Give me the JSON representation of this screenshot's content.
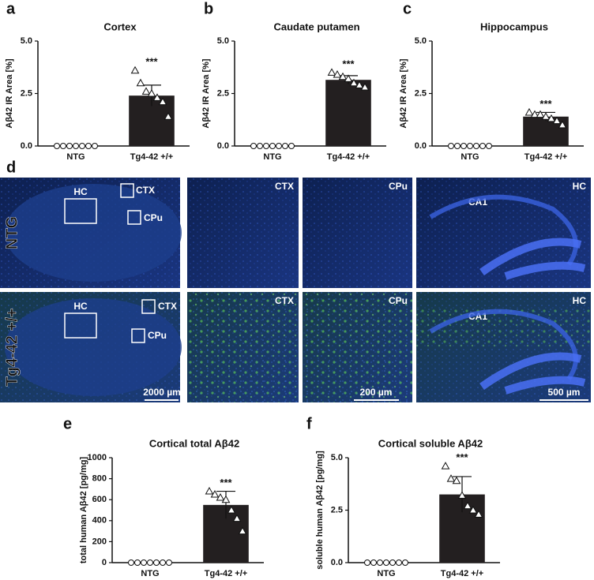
{
  "chart_data": [
    {
      "type": "bar",
      "panel": "a",
      "title": "Cortex",
      "ylabel": "Aβ42 IR Area [%]",
      "categories": [
        "NTG",
        "Tg4-42 +/+"
      ],
      "values": [
        0,
        2.4
      ],
      "errors": [
        0,
        0.5
      ],
      "points": [
        [
          0,
          0,
          0,
          0,
          0,
          0,
          0
        ],
        [
          3.6,
          3.0,
          2.6,
          2.5,
          2.3,
          2.1,
          1.4
        ]
      ],
      "annotation": "***",
      "color": "#231f20",
      "ylim": [
        0,
        5
      ],
      "yticks": [
        {
          "value": 0,
          "label": "0.0"
        },
        2.5,
        {
          "value": 5,
          "label": "5.0"
        }
      ]
    },
    {
      "type": "bar",
      "panel": "b",
      "title": "Caudate putamen",
      "ylabel": "Aβ42 IR Area [%]",
      "categories": [
        "NTG",
        "Tg4-42 +/+"
      ],
      "values": [
        0,
        3.15
      ],
      "errors": [
        0,
        0.2
      ],
      "points": [
        [
          0,
          0,
          0,
          0,
          0,
          0,
          0
        ],
        [
          3.5,
          3.4,
          3.3,
          3.2,
          3.0,
          2.9,
          2.8
        ]
      ],
      "annotation": "***",
      "color": "#231f20",
      "ylim": [
        0,
        5
      ],
      "yticks": [
        {
          "value": 0,
          "label": "0.0"
        },
        2.5,
        {
          "value": 5,
          "label": "5.0"
        }
      ]
    },
    {
      "type": "bar",
      "panel": "c",
      "title": "Hippocampus",
      "ylabel": "Aβ42 IR Area [%]",
      "categories": [
        "NTG",
        "Tg4-42 +/+"
      ],
      "values": [
        0,
        1.4
      ],
      "errors": [
        0,
        0.2
      ],
      "points": [
        [
          0,
          0,
          0,
          0,
          0,
          0,
          0
        ],
        [
          1.6,
          1.5,
          1.5,
          1.4,
          1.3,
          1.2,
          1.0
        ]
      ],
      "annotation": "***",
      "color": "#231f20",
      "ylim": [
        0,
        5
      ],
      "yticks": [
        {
          "value": 0,
          "label": "0.0"
        },
        2.5,
        {
          "value": 5,
          "label": "5.0"
        }
      ]
    },
    {
      "type": "bar",
      "panel": "e",
      "title": "Cortical total Aβ42",
      "ylabel": "total human Aβ42 [pg/mg]",
      "categories": [
        "NTG",
        "Tg4-42 +/+"
      ],
      "values": [
        0,
        550
      ],
      "errors": [
        0,
        130
      ],
      "points": [
        [
          0,
          0,
          0,
          0,
          0,
          0,
          0
        ],
        [
          680,
          650,
          620,
          600,
          500,
          420,
          300
        ]
      ],
      "annotation": "***",
      "color": "#231f20",
      "ylim": [
        0,
        1000
      ],
      "yticks": [
        0,
        200,
        400,
        600,
        800,
        1000
      ]
    },
    {
      "type": "bar",
      "panel": "f",
      "title": "Cortical soluble Aβ42",
      "ylabel": "soluble human Aβ42 [pg/mg]",
      "categories": [
        "NTG",
        "Tg4-42 +/+"
      ],
      "values": [
        0,
        3.25
      ],
      "errors": [
        0,
        0.85
      ],
      "points": [
        [
          0,
          0,
          0,
          0,
          0,
          0,
          0
        ],
        [
          4.6,
          4.0,
          3.9,
          3.2,
          2.7,
          2.5,
          2.3
        ]
      ],
      "annotation": "***",
      "color": "#231f20",
      "ylim": [
        0,
        5
      ],
      "yticks": [
        {
          "value": 0,
          "label": "0.0"
        },
        2.5,
        {
          "value": 5,
          "label": "5.0"
        }
      ]
    }
  ],
  "micrographs": {
    "panel": "d",
    "rows": [
      "NTG",
      "Tg4-42 +/+"
    ],
    "region_labels": {
      "hc": "HC",
      "ctx": "CTX",
      "cpu": "CPu",
      "ca1": "CA1"
    },
    "scale_bars": [
      "2000 µm",
      "200 µm",
      "500 µm"
    ]
  }
}
